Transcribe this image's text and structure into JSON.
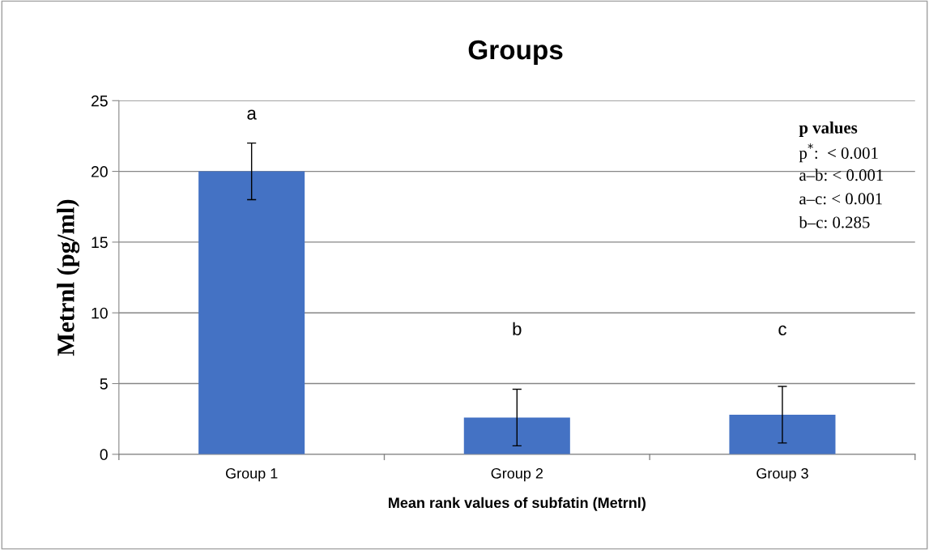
{
  "chart_data": {
    "type": "bar",
    "title": "Groups",
    "xlabel": "Mean rank values of subfatin (Metrnl)",
    "ylabel": "Metrnl (pg/ml)",
    "categories": [
      "Group 1",
      "Group 2",
      "Group 3"
    ],
    "values": [
      20.0,
      2.6,
      2.8
    ],
    "errors": [
      2.0,
      2.0,
      2.0
    ],
    "color": "#4472c4",
    "ylim": [
      0,
      25
    ],
    "yticks": [
      0,
      5,
      10,
      15,
      20,
      25
    ],
    "grid": "y",
    "annotations": [
      "a",
      "b",
      "c",
      "p values",
      "p$^{*}$:  < 0.001",
      "a–b: < 0.001",
      "a–c: < 0.001",
      "b–c: 0.285"
    ]
  }
}
